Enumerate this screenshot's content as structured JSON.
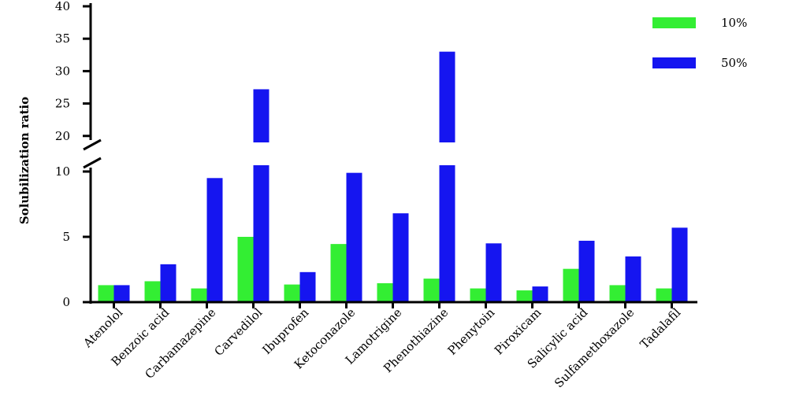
{
  "chart_data": {
    "type": "bar",
    "title": "",
    "xlabel": "",
    "ylabel": "Solubilization ratio",
    "axis_break": {
      "lower_range": [
        0,
        10.5
      ],
      "upper_range": [
        19,
        40
      ]
    },
    "lower_ticks": [
      "0",
      "5",
      "10"
    ],
    "upper_ticks": [
      "20",
      "25",
      "30",
      "35",
      "40"
    ],
    "categories": [
      "Atenolol",
      "Benzoic acid",
      "Carbamazepine",
      "Carvedilol",
      "Ibuprofen",
      "Ketoconazole",
      "Lamotrigine",
      "Phenothiazine",
      "Phenytoin",
      "Piroxicam",
      "Salicylic acid",
      "Sulfamethoxazole",
      "Tadalafil"
    ],
    "series": [
      {
        "name": "10%",
        "color": "#33ee33",
        "values": [
          1.3,
          1.6,
          1.05,
          5.0,
          1.35,
          4.45,
          1.45,
          1.8,
          1.05,
          0.9,
          2.55,
          1.3,
          1.05
        ]
      },
      {
        "name": "50%",
        "color": "#1515f0",
        "values": [
          1.3,
          2.9,
          9.5,
          27.2,
          2.3,
          9.9,
          6.8,
          33.0,
          4.5,
          1.2,
          4.7,
          3.5,
          5.7
        ]
      }
    ],
    "legend_position": "top-right",
    "grid": false
  }
}
